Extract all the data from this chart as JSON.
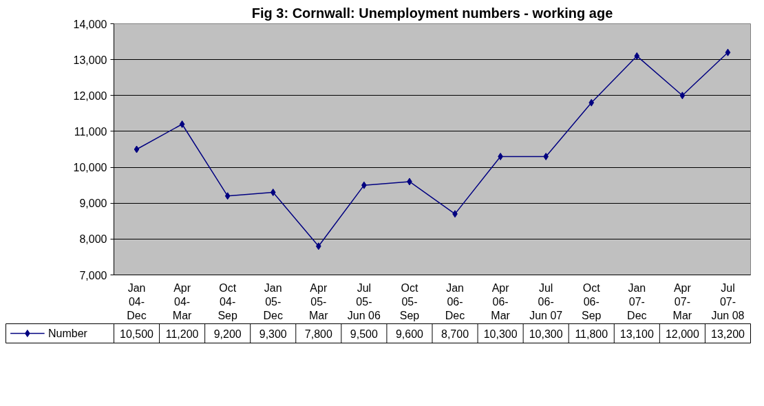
{
  "chart_data": {
    "type": "line",
    "title": "Fig 3: Cornwall: Unemployment numbers - working age",
    "categories": [
      "Jan 04-Dec",
      "Apr 04-Mar",
      "Oct 04-Sep",
      "Jan 05-Dec",
      "Apr 05-Mar",
      "Jul 05-Jun 06",
      "Oct 05-Sep",
      "Jan 06-Dec",
      "Apr 06-Mar",
      "Jul 06-Jun 07",
      "Oct 06-Sep",
      "Jan 07-Dec",
      "Apr 07-Mar",
      "Jul 07-Jun 08"
    ],
    "series": [
      {
        "name": "Number",
        "color": "#000080",
        "values": [
          10500,
          11200,
          9200,
          9300,
          7800,
          9500,
          9600,
          8700,
          10300,
          10300,
          11800,
          13100,
          12000,
          13200
        ],
        "value_labels": [
          "10,500",
          "11,200",
          "9,200",
          "9,300",
          "7,800",
          "9,500",
          "9,600",
          "8,700",
          "10,300",
          "10,300",
          "11,800",
          "13,100",
          "12,000",
          "13,200"
        ]
      }
    ],
    "ylim": [
      7000,
      14000
    ],
    "yticks": [
      {
        "value": 7000,
        "label": "7,000"
      },
      {
        "value": 8000,
        "label": "8,000"
      },
      {
        "value": 9000,
        "label": "9,000"
      },
      {
        "value": 10000,
        "label": "10,000"
      },
      {
        "value": 11000,
        "label": "11,000"
      },
      {
        "value": 12000,
        "label": "12,000"
      },
      {
        "value": 13000,
        "label": "13,000"
      },
      {
        "value": 14000,
        "label": "14,000"
      }
    ],
    "grid": "y",
    "legend": "bottom left",
    "marker": "diamond",
    "line_style": "solid"
  }
}
